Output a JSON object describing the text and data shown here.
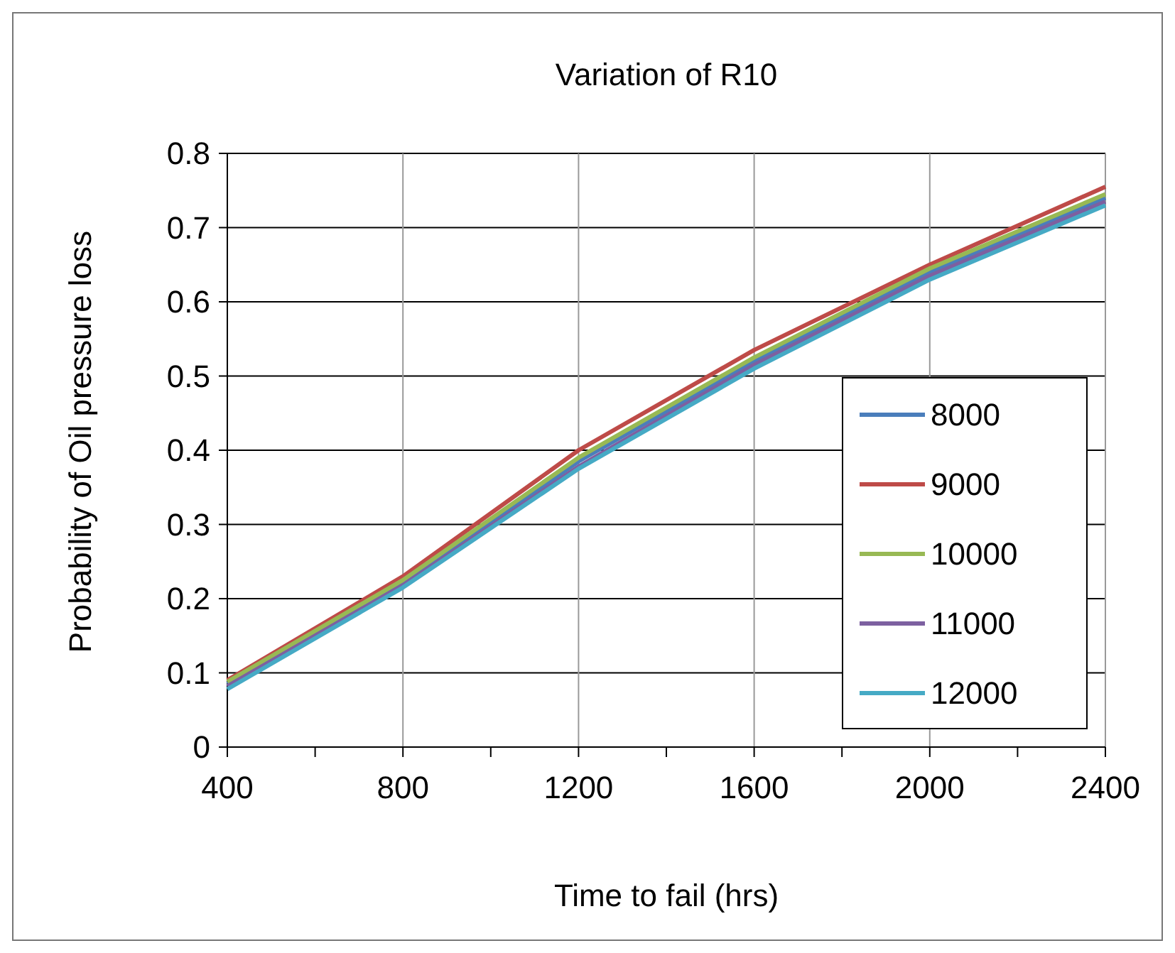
{
  "chart_data": {
    "type": "line",
    "title": "Variation of R10",
    "xlabel": "Time to fail (hrs)",
    "ylabel": "Probability of Oil pressure loss",
    "x": [
      400,
      800,
      1200,
      1600,
      2000,
      2400
    ],
    "series": [
      {
        "name": "8000",
        "color": "#4a7ebb",
        "values": [
          0.085,
          0.22,
          0.385,
          0.52,
          0.64,
          0.74
        ]
      },
      {
        "name": "9000",
        "color": "#be4b48",
        "values": [
          0.09,
          0.23,
          0.4,
          0.535,
          0.65,
          0.755
        ]
      },
      {
        "name": "10000",
        "color": "#98b954",
        "values": [
          0.088,
          0.225,
          0.39,
          0.525,
          0.645,
          0.745
        ]
      },
      {
        "name": "11000",
        "color": "#7d60a0",
        "values": [
          0.082,
          0.218,
          0.378,
          0.515,
          0.635,
          0.735
        ]
      },
      {
        "name": "12000",
        "color": "#46aac5",
        "values": [
          0.078,
          0.215,
          0.375,
          0.51,
          0.63,
          0.73
        ]
      }
    ],
    "xlim": [
      400,
      2400
    ],
    "xticks": [
      400,
      {
        "value": 600,
        "label": null
      },
      800,
      {
        "value": 1000,
        "label": null
      },
      1200,
      {
        "value": 1400,
        "label": null
      },
      1600,
      {
        "value": 1800,
        "label": null
      },
      2000,
      {
        "value": 2200,
        "label": null
      },
      2400
    ],
    "ylim": [
      0,
      0.8
    ],
    "yticks": [
      0,
      0.1,
      0.2,
      0.3,
      0.4,
      0.5,
      0.6,
      0.7,
      0.8
    ],
    "grid": true,
    "legend": "bottom right",
    "marker": "none",
    "line_style": "solid"
  }
}
